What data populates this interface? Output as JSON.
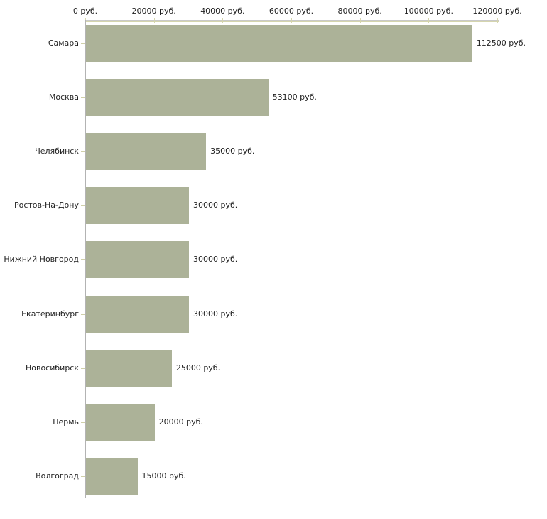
{
  "chart_data": {
    "type": "bar",
    "orientation": "horizontal",
    "title": "",
    "xlabel": "",
    "ylabel": "",
    "grid": false,
    "legend": null,
    "categories": [
      "Самара",
      "Москва",
      "Челябинск",
      "Ростов-На-Дону",
      "Нижний Новгород",
      "Екатеринбург",
      "Новосибирск",
      "Пермь",
      "Волгоград"
    ],
    "values": [
      112500,
      53100,
      35000,
      30000,
      30000,
      30000,
      25000,
      20000,
      15000
    ],
    "value_labels": [
      "112500 руб.",
      "53100 руб.",
      "35000 руб.",
      "30000 руб.",
      "30000 руб.",
      "30000 руб.",
      "25000 руб.",
      "20000 руб.",
      "15000 руб."
    ],
    "x_axis": {
      "position": "top",
      "min": 0,
      "max": 120000,
      "ticks": [
        0,
        20000,
        40000,
        60000,
        80000,
        100000,
        120000
      ],
      "tick_labels": [
        "0 руб.",
        "20000 руб.",
        "40000 руб.",
        "60000 руб.",
        "80000 руб.",
        "100000 руб.",
        "120000 руб."
      ]
    },
    "colors": {
      "bar": "#acb298",
      "axis_line": "#c9c9c9",
      "tick_line": "#d5d5ae",
      "category_tick": "#cfcfa8",
      "y_axis_line": "#b3b3b3",
      "text": "#1f1f1f",
      "background": "#ffffff"
    }
  }
}
